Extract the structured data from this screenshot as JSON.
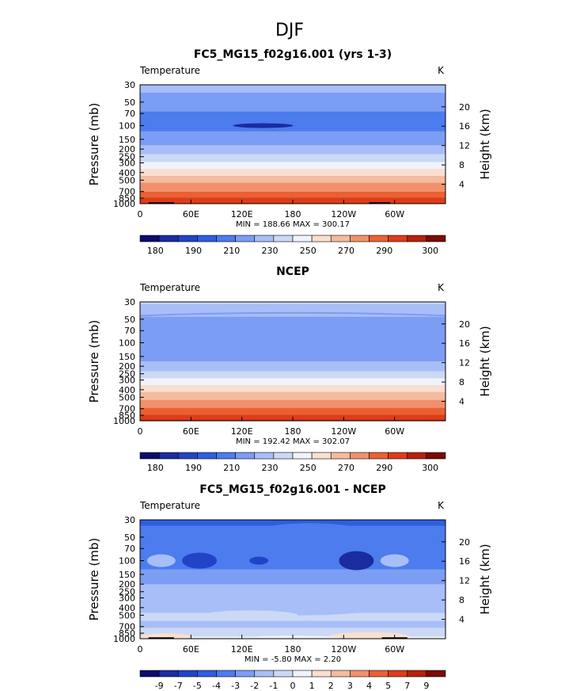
{
  "figure": {
    "title": "DJF"
  },
  "colors": {
    "absolute": [
      "#0b0c6e",
      "#1a2c9f",
      "#2144c7",
      "#2d5fe0",
      "#4c7ced",
      "#7c9df4",
      "#a8bef8",
      "#cbd9f5",
      "#f0f3fa",
      "#f9dfcf",
      "#f5bb9e",
      "#f1916c",
      "#ea6133",
      "#de3c18",
      "#b7200c",
      "#7c0a05"
    ],
    "diff": [
      "#0b0c6e",
      "#1a2c9f",
      "#2144c7",
      "#2d5fe0",
      "#4c7ced",
      "#7c9df4",
      "#a8bef8",
      "#cbd9f5",
      "#f0f3fa",
      "#f9dfcf",
      "#f5bb9e",
      "#f1916c",
      "#ea6133",
      "#de3c18",
      "#b7200c",
      "#7c0a05"
    ],
    "topo": "#000000"
  },
  "chart_data": [
    {
      "type": "contour",
      "title": "FC5_MG15_f02g16.001 (yrs 1-3)",
      "variable_label": "Temperature",
      "units_label": "K",
      "ylabel": "Pressure  (mb)",
      "y2label": "Height  (km)",
      "x_ticks": [
        "0",
        "60E",
        "120E",
        "180",
        "120W",
        "60W"
      ],
      "x_tick_values": [
        0,
        60,
        120,
        180,
        240,
        300
      ],
      "xlim": [
        0,
        360
      ],
      "y_ticks": [
        "30",
        "50",
        "70",
        "100",
        "150",
        "200",
        "250",
        "300",
        "400",
        "500",
        "700",
        "850",
        "1000"
      ],
      "y_tick_values": [
        30,
        50,
        70,
        100,
        150,
        200,
        250,
        300,
        400,
        500,
        700,
        850,
        1000
      ],
      "y2_ticks": [
        "20",
        "16",
        "12",
        "8",
        "4"
      ],
      "y2_tick_values": [
        20,
        16,
        12,
        8,
        4
      ],
      "stats": "MIN = 188.66  MAX = 300.17",
      "min": 188.66,
      "max": 300.17,
      "colorbar_labels": [
        "180",
        "190",
        "210",
        "230",
        "250",
        "270",
        "290",
        "300"
      ],
      "colorbar_levels": [
        175,
        180,
        185,
        190,
        200,
        210,
        220,
        230,
        240,
        250,
        260,
        270,
        280,
        290,
        295,
        300
      ],
      "profile": [
        {
          "p": 30,
          "v": 214
        },
        {
          "p": 50,
          "v": 205
        },
        {
          "p": 70,
          "v": 199
        },
        {
          "p": 100,
          "v": 198
        },
        {
          "p": 130,
          "v": 201
        },
        {
          "p": 150,
          "v": 205
        },
        {
          "p": 200,
          "v": 213
        },
        {
          "p": 250,
          "v": 223
        },
        {
          "p": 300,
          "v": 231
        },
        {
          "p": 400,
          "v": 246
        },
        {
          "p": 500,
          "v": 256
        },
        {
          "p": 600,
          "v": 264
        },
        {
          "p": 700,
          "v": 270
        },
        {
          "p": 850,
          "v": 280
        },
        {
          "p": 925,
          "v": 285
        },
        {
          "p": 1000,
          "v": 289
        }
      ]
    },
    {
      "type": "contour",
      "title": "NCEP",
      "variable_label": "Temperature",
      "units_label": "K",
      "ylabel": "Pressure  (mb)",
      "y2label": "Height  (km)",
      "x_ticks": [
        "0",
        "60E",
        "120E",
        "180",
        "120W",
        "60W"
      ],
      "x_tick_values": [
        0,
        60,
        120,
        180,
        240,
        300
      ],
      "xlim": [
        0,
        360
      ],
      "y_ticks": [
        "30",
        "50",
        "70",
        "100",
        "150",
        "200",
        "250",
        "300",
        "400",
        "500",
        "700",
        "850",
        "1000"
      ],
      "y_tick_values": [
        30,
        50,
        70,
        100,
        150,
        200,
        250,
        300,
        400,
        500,
        700,
        850,
        1000
      ],
      "y2_ticks": [
        "20",
        "16",
        "12",
        "8",
        "4"
      ],
      "y2_tick_values": [
        20,
        16,
        12,
        8,
        4
      ],
      "stats": "MIN = 192.42  MAX = 302.07",
      "min": 192.42,
      "max": 302.07,
      "colorbar_labels": [
        "180",
        "190",
        "210",
        "230",
        "250",
        "270",
        "290",
        "300"
      ],
      "colorbar_levels": [
        175,
        180,
        185,
        190,
        200,
        210,
        220,
        230,
        240,
        250,
        260,
        270,
        280,
        290,
        295,
        300
      ],
      "profile": [
        {
          "p": 30,
          "v": 222
        },
        {
          "p": 40,
          "v": 214
        },
        {
          "p": 50,
          "v": 208
        },
        {
          "p": 70,
          "v": 203
        },
        {
          "p": 100,
          "v": 201
        },
        {
          "p": 130,
          "v": 203
        },
        {
          "p": 150,
          "v": 206
        },
        {
          "p": 200,
          "v": 214
        },
        {
          "p": 250,
          "v": 223
        },
        {
          "p": 300,
          "v": 232
        },
        {
          "p": 400,
          "v": 247
        },
        {
          "p": 500,
          "v": 257
        },
        {
          "p": 600,
          "v": 265
        },
        {
          "p": 700,
          "v": 271
        },
        {
          "p": 850,
          "v": 281
        },
        {
          "p": 925,
          "v": 286
        },
        {
          "p": 1000,
          "v": 291
        }
      ]
    },
    {
      "type": "contour",
      "title": "FC5_MG15_f02g16.001 - NCEP",
      "variable_label": "Temperature",
      "units_label": "K",
      "ylabel": "Pressure  (mb)",
      "y2label": "Height  (km)",
      "x_ticks": [
        "0",
        "60E",
        "120E",
        "180",
        "120W",
        "60W"
      ],
      "x_tick_values": [
        0,
        60,
        120,
        180,
        240,
        300
      ],
      "xlim": [
        0,
        360
      ],
      "y_ticks": [
        "30",
        "50",
        "70",
        "100",
        "150",
        "200",
        "250",
        "300",
        "400",
        "500",
        "700",
        "850",
        "1000"
      ],
      "y_tick_values": [
        30,
        50,
        70,
        100,
        150,
        200,
        250,
        300,
        400,
        500,
        700,
        850,
        1000
      ],
      "y2_ticks": [
        "20",
        "16",
        "12",
        "8",
        "4"
      ],
      "y2_tick_values": [
        20,
        16,
        12,
        8,
        4
      ],
      "stats": "MIN =  -5.80  MAX =   2.20",
      "min": -5.8,
      "max": 2.2,
      "colorbar_labels": [
        "-9",
        "-7",
        "-5",
        "-4",
        "-3",
        "-2",
        "-1",
        "0",
        "1",
        "2",
        "3",
        "4",
        "5",
        "7",
        "9"
      ],
      "colorbar_levels": [
        -9,
        -7,
        -5,
        -4,
        -3,
        -2,
        -1,
        0,
        1,
        2,
        3,
        4,
        5,
        7,
        9
      ],
      "profile": [
        {
          "p": 30,
          "v": -4.2
        },
        {
          "p": 50,
          "v": -3.6
        },
        {
          "p": 70,
          "v": -3.2
        },
        {
          "p": 100,
          "v": -3.4
        },
        {
          "p": 150,
          "v": -2.8
        },
        {
          "p": 200,
          "v": -2.0
        },
        {
          "p": 250,
          "v": -1.8
        },
        {
          "p": 300,
          "v": -1.6
        },
        {
          "p": 400,
          "v": -1.2
        },
        {
          "p": 500,
          "v": -0.9
        },
        {
          "p": 700,
          "v": -1.1
        },
        {
          "p": 850,
          "v": -0.6
        },
        {
          "p": 1000,
          "v": 0.4
        }
      ]
    }
  ]
}
